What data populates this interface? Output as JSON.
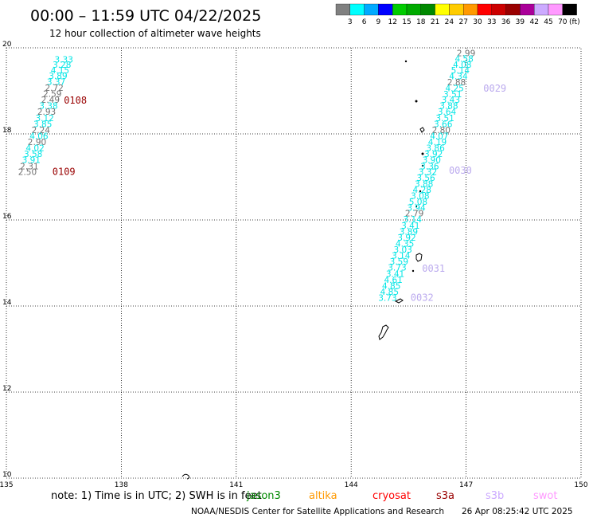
{
  "header": {
    "title": "00:00 – 11:59 UTC 04/22/2025",
    "subtitle": "12 hour collection of altimeter wave heights"
  },
  "colorbar": {
    "unit": "(ft)",
    "colors": [
      "#808080",
      "#00ffff",
      "#00aaff",
      "#0000ff",
      "#00cc00",
      "#00aa00",
      "#008800",
      "#ffff00",
      "#ffcc00",
      "#ff9900",
      "#ff0000",
      "#cc0000",
      "#990000",
      "#aa0099",
      "#ccaaff",
      "#ff99ff",
      "#000000"
    ],
    "labels": [
      "3",
      "6",
      "9",
      "12",
      "15",
      "18",
      "21",
      "24",
      "27",
      "30",
      "33",
      "36",
      "39",
      "42",
      "45",
      "70"
    ]
  },
  "chart_data": {
    "type": "scatter",
    "title": "00:00 – 11:59 UTC 04/22/2025",
    "subtitle": "12 hour collection of altimeter wave heights",
    "xlabel": "",
    "ylabel": "",
    "xlim": [
      135,
      150
    ],
    "ylim": [
      10,
      20
    ],
    "xticks": [
      "135",
      "138",
      "141",
      "144",
      "147",
      "150"
    ],
    "yticks": [
      "10",
      "12",
      "14",
      "16",
      "18",
      "20"
    ],
    "grid": true,
    "series": [
      {
        "track": "left",
        "points": [
          {
            "x": 136.5,
            "y": 19.66,
            "v": "3.33"
          },
          {
            "x": 136.45,
            "y": 19.54,
            "v": "3.28"
          },
          {
            "x": 136.4,
            "y": 19.41,
            "v": "4.15"
          },
          {
            "x": 136.35,
            "y": 19.28,
            "v": "3.89"
          },
          {
            "x": 136.3,
            "y": 19.14,
            "v": "3.37"
          },
          {
            "x": 136.25,
            "y": 19.0,
            "v": "2.72"
          },
          {
            "x": 136.2,
            "y": 18.86,
            "v": "2.59"
          },
          {
            "x": 136.15,
            "y": 18.72,
            "v": "2.49"
          },
          {
            "x": 136.1,
            "y": 18.58,
            "v": "3.38"
          },
          {
            "x": 136.05,
            "y": 18.44,
            "v": "2.93"
          },
          {
            "x": 136.0,
            "y": 18.3,
            "v": "3.12"
          },
          {
            "x": 135.95,
            "y": 18.16,
            "v": "3.85"
          },
          {
            "x": 135.9,
            "y": 18.02,
            "v": "2.24"
          },
          {
            "x": 135.85,
            "y": 17.88,
            "v": "4.06"
          },
          {
            "x": 135.8,
            "y": 17.74,
            "v": "2.90"
          },
          {
            "x": 135.75,
            "y": 17.6,
            "v": "4.02"
          },
          {
            "x": 135.7,
            "y": 17.46,
            "v": "3.58"
          },
          {
            "x": 135.65,
            "y": 17.32,
            "v": "3.91"
          },
          {
            "x": 135.6,
            "y": 17.18,
            "v": "2.31"
          },
          {
            "x": 135.55,
            "y": 17.05,
            "v": "2.50"
          }
        ]
      },
      {
        "track": "right",
        "points": [
          {
            "x": 147.0,
            "y": 19.81,
            "v": "2.99"
          },
          {
            "x": 146.95,
            "y": 19.68,
            "v": "4.58"
          },
          {
            "x": 146.9,
            "y": 19.54,
            "v": "4.08"
          },
          {
            "x": 146.85,
            "y": 19.41,
            "v": "5.14"
          },
          {
            "x": 146.8,
            "y": 19.27,
            "v": "4.34"
          },
          {
            "x": 146.75,
            "y": 19.13,
            "v": "2.88"
          },
          {
            "x": 146.7,
            "y": 18.99,
            "v": "4.25"
          },
          {
            "x": 146.65,
            "y": 18.85,
            "v": "3.51"
          },
          {
            "x": 146.6,
            "y": 18.72,
            "v": "3.43"
          },
          {
            "x": 146.55,
            "y": 18.58,
            "v": "3.88"
          },
          {
            "x": 146.5,
            "y": 18.44,
            "v": "3.64"
          },
          {
            "x": 146.45,
            "y": 18.3,
            "v": "3.51"
          },
          {
            "x": 146.4,
            "y": 18.16,
            "v": "3.66"
          },
          {
            "x": 146.35,
            "y": 18.02,
            "v": "2.80"
          },
          {
            "x": 146.3,
            "y": 17.88,
            "v": "4.07"
          },
          {
            "x": 146.25,
            "y": 17.74,
            "v": "4.19"
          },
          {
            "x": 146.2,
            "y": 17.6,
            "v": "3.86"
          },
          {
            "x": 146.15,
            "y": 17.46,
            "v": "3.92"
          },
          {
            "x": 146.1,
            "y": 17.32,
            "v": "3.90"
          },
          {
            "x": 146.05,
            "y": 17.18,
            "v": "3.36"
          },
          {
            "x": 146.0,
            "y": 17.05,
            "v": "3.32"
          },
          {
            "x": 145.95,
            "y": 16.91,
            "v": "3.56"
          },
          {
            "x": 145.9,
            "y": 16.77,
            "v": "3.88"
          },
          {
            "x": 145.85,
            "y": 16.63,
            "v": "4.28"
          },
          {
            "x": 145.8,
            "y": 16.49,
            "v": "3.08"
          },
          {
            "x": 145.75,
            "y": 16.35,
            "v": "5.08"
          },
          {
            "x": 145.7,
            "y": 16.21,
            "v": "3.94"
          },
          {
            "x": 145.65,
            "y": 16.08,
            "v": "2.79"
          },
          {
            "x": 145.6,
            "y": 15.94,
            "v": "3.14"
          },
          {
            "x": 145.55,
            "y": 15.8,
            "v": "3.41"
          },
          {
            "x": 145.5,
            "y": 15.66,
            "v": "3.89"
          },
          {
            "x": 145.45,
            "y": 15.52,
            "v": "3.92"
          },
          {
            "x": 145.4,
            "y": 15.38,
            "v": "4.35"
          },
          {
            "x": 145.35,
            "y": 15.24,
            "v": "3.03"
          },
          {
            "x": 145.3,
            "y": 15.1,
            "v": "3.14"
          },
          {
            "x": 145.25,
            "y": 14.96,
            "v": "3.59"
          },
          {
            "x": 145.2,
            "y": 14.82,
            "v": "3.73"
          },
          {
            "x": 145.15,
            "y": 14.68,
            "v": "3.41"
          },
          {
            "x": 145.1,
            "y": 14.54,
            "v": "4.61"
          },
          {
            "x": 145.05,
            "y": 14.4,
            "v": "4.85"
          },
          {
            "x": 145.0,
            "y": 14.26,
            "v": "4.85"
          },
          {
            "x": 144.95,
            "y": 14.12,
            "v": "3.73"
          }
        ]
      }
    ],
    "pass_labels": [
      {
        "x": 136.5,
        "y": 18.7,
        "text": "0108"
      },
      {
        "x": 136.2,
        "y": 17.05,
        "text": "0109"
      },
      {
        "x": 147.45,
        "y": 18.98,
        "text": "0029"
      },
      {
        "x": 146.55,
        "y": 17.07,
        "text": "0030"
      },
      {
        "x": 145.85,
        "y": 14.8,
        "text": "0031"
      },
      {
        "x": 145.55,
        "y": 14.12,
        "text": "0032"
      }
    ]
  },
  "footer": {
    "note": "note:  1) Time is in UTC; 2) SWH is in feet",
    "satellites": [
      {
        "name": "jason3",
        "color": "#008800"
      },
      {
        "name": "altika",
        "color": "#ff9900"
      },
      {
        "name": "cryosat",
        "color": "#ff0000"
      },
      {
        "name": "s3a",
        "color": "#990000"
      },
      {
        "name": "s3b",
        "color": "#ccaaff"
      },
      {
        "name": "swot",
        "color": "#ff99ff"
      }
    ],
    "credit": "NOAA/NESDIS Center for Satellite Applications and Research",
    "timestamp": "26 Apr 08:25:42 UTC 2025"
  },
  "colors": {
    "swh_3_6": "#00e5e5",
    "swh_lt3": "#707070",
    "pass_s3a": "#990000",
    "pass_s3b": "#bbaaee"
  }
}
